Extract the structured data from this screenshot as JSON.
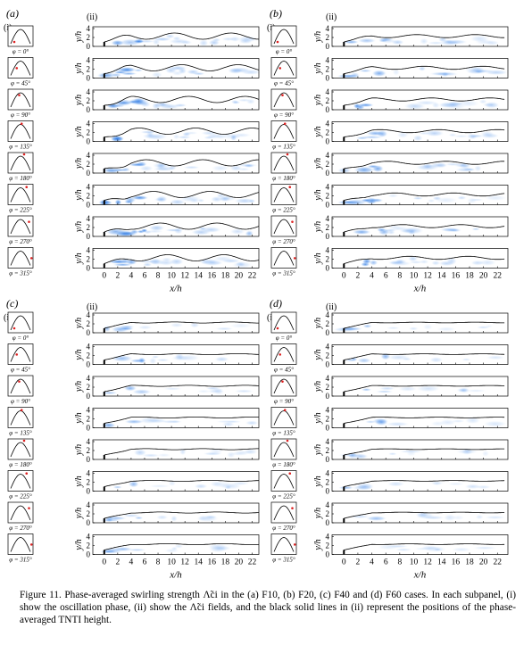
{
  "panels": [
    {
      "label": "(a)",
      "sub_i": "(i)",
      "sub_ii": "(ii)",
      "phases": [
        "φ = 0°",
        "φ = 45°",
        "φ = 90°",
        "φ = 135°",
        "φ = 180°",
        "φ = 225°",
        "φ = 270°",
        "φ = 315°"
      ],
      "ylabel": "y/h",
      "xlabel": "x/h",
      "yticks": [
        0,
        2,
        4
      ],
      "ylim": [
        0,
        4.4
      ],
      "xticks": [
        0,
        2,
        4,
        6,
        8,
        10,
        12,
        14,
        16,
        18,
        20,
        22
      ],
      "xlim": [
        -1.7,
        23
      ]
    },
    {
      "label": "(b)",
      "sub_i": "(i)",
      "sub_ii": "(ii)",
      "phases": [
        "φ = 0°",
        "φ = 45°",
        "φ = 90°",
        "φ = 135°",
        "φ = 180°",
        "φ = 225°",
        "φ = 270°",
        "φ = 315°"
      ],
      "ylabel": "y/h",
      "xlabel": "x/h",
      "yticks": [
        0,
        2,
        4
      ],
      "ylim": [
        0,
        4.4
      ],
      "xticks": [
        0,
        2,
        4,
        6,
        8,
        10,
        12,
        14,
        16,
        18,
        20,
        22
      ],
      "xlim": [
        -1.7,
        23.5
      ]
    },
    {
      "label": "(c)",
      "sub_i": "(i)",
      "sub_ii": "(ii)",
      "phases": [
        "φ = 0°",
        "φ = 45°",
        "φ = 90°",
        "φ = 135°",
        "φ = 180°",
        "φ = 225°",
        "φ = 270°",
        "φ = 315°"
      ],
      "ylabel": "y/h",
      "xlabel": "x/h",
      "yticks": [
        0,
        2,
        4
      ],
      "ylim": [
        0,
        4.4
      ],
      "xticks": [
        0,
        2,
        4,
        6,
        8,
        10,
        12,
        14,
        16,
        18,
        20,
        22
      ],
      "xlim": [
        -1.7,
        23
      ]
    },
    {
      "label": "(d)",
      "sub_i": "(i)",
      "sub_ii": "(ii)",
      "phases": [
        "φ = 0°",
        "φ = 45°",
        "φ = 90°",
        "φ = 135°",
        "φ = 180°",
        "φ = 225°",
        "φ = 270°",
        "φ = 315°"
      ],
      "ylabel": "y/h",
      "xlabel": "x/h",
      "yticks": [
        0,
        2,
        4
      ],
      "ylim": [
        0,
        4.4
      ],
      "xticks": [
        0,
        2,
        4,
        6,
        8,
        10,
        12,
        14,
        16,
        18,
        20,
        22
      ],
      "xlim": [
        -1.7,
        23.5
      ]
    }
  ],
  "caption": "Figure 11. Phase-averaged swirling strength Λ̃ci in the (a) F10, (b) F20, (c) F40 and (d) F60 cases. In each subpanel, (i) show the oscillation phase, (ii) show the Λ̃ci fields, and the black solid lines in (ii) represent the positions of the phase-averaged TNTI height."
}
